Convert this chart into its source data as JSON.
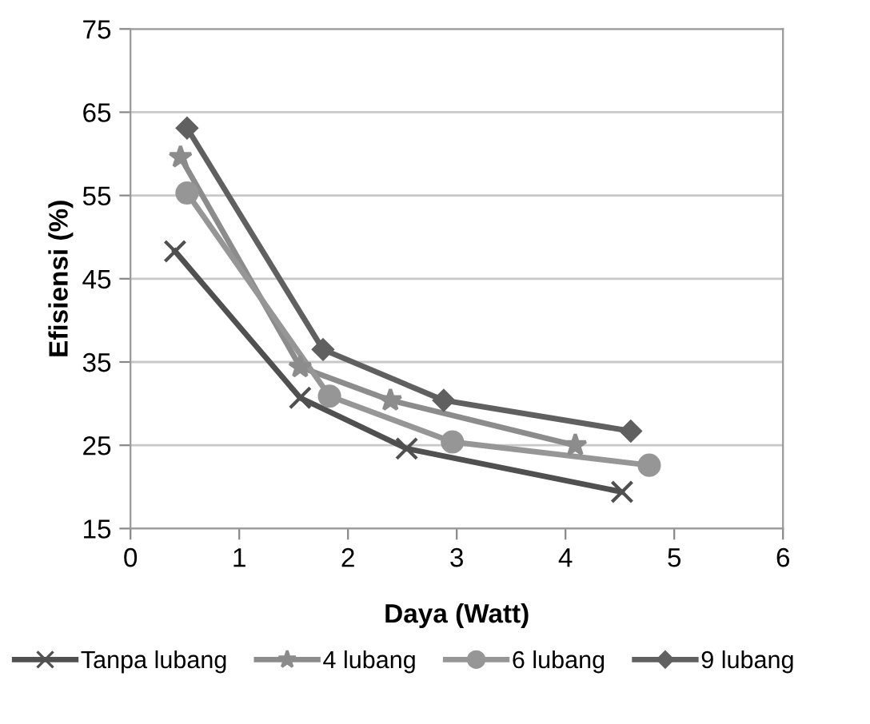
{
  "chart_data": {
    "type": "line",
    "xlabel": "Daya (Watt)",
    "ylabel": "Efisiensi (%)",
    "xlim": [
      0,
      6
    ],
    "xticks": [
      0,
      1,
      2,
      3,
      4,
      5,
      6
    ],
    "ylim": [
      15,
      75
    ],
    "yticks": [
      15,
      25,
      35,
      45,
      55,
      65,
      75
    ],
    "grid": "y",
    "legend": "bottom",
    "line_style": "solid",
    "series": [
      {
        "name": "Tanpa lubang",
        "color": "#505050",
        "marker": "cross",
        "x": [
          0.41,
          1.56,
          2.54,
          4.52
        ],
        "values": [
          48.3,
          30.7,
          24.6,
          19.4
        ]
      },
      {
        "name": "4 lubang",
        "color": "#8c8c8c",
        "marker": "star",
        "x": [
          0.46,
          1.56,
          2.39,
          4.09
        ],
        "values": [
          59.6,
          34.4,
          30.4,
          25.0
        ]
      },
      {
        "name": "6 lubang",
        "color": "#969696",
        "marker": "circle",
        "x": [
          0.52,
          1.83,
          2.96,
          4.77
        ],
        "values": [
          55.3,
          30.9,
          25.4,
          22.6
        ]
      },
      {
        "name": "9 lubang",
        "color": "#606060",
        "marker": "diamond",
        "x": [
          0.52,
          1.77,
          2.88,
          4.6
        ],
        "values": [
          63.1,
          36.5,
          30.4,
          26.7
        ]
      }
    ]
  }
}
